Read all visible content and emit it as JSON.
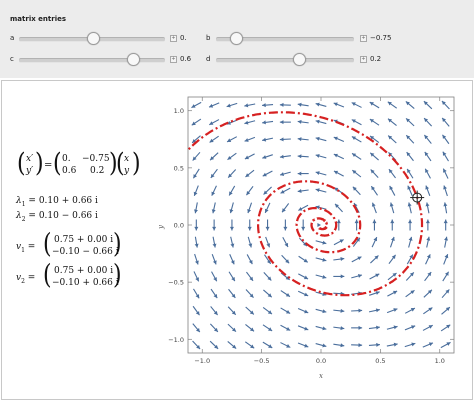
{
  "controls": {
    "title": "matrix entries",
    "sliders": [
      {
        "label": "a",
        "value_text": "0.",
        "value": 0.0
      },
      {
        "label": "b",
        "value_text": "−0.75",
        "value": -0.75
      },
      {
        "label": "c",
        "value_text": "0.6",
        "value": 0.6
      },
      {
        "label": "d",
        "value_text": "0.2",
        "value": 0.2
      }
    ]
  },
  "equation": {
    "lhs_top": "x′",
    "lhs_bot": "y′",
    "m11": "0.",
    "m12": "−0.75",
    "m21": "0.6",
    "m22": "0.2",
    "rhs_top": "x",
    "rhs_bot": "y",
    "eq": "="
  },
  "eigenvalues": [
    {
      "name": "λ",
      "sub": "1",
      "value": "0.10 + 0.66 i"
    },
    {
      "name": "λ",
      "sub": "2",
      "value": "0.10 − 0.66 i"
    }
  ],
  "eigenvectors": [
    {
      "name": "v",
      "sub": "1",
      "top": "0.75 + 0.00 i",
      "bot": "−0.10 − 0.66 i"
    },
    {
      "name": "v",
      "sub": "2",
      "top": "0.75 + 0.00 i",
      "bot": "−0.10 + 0.66 i"
    }
  ],
  "plot": {
    "xlabel": "x",
    "ylabel": "y",
    "x_ticks": [
      "−1.0",
      "−0.5",
      "0.0",
      "0.5",
      "1.0"
    ],
    "y_ticks": [
      "1.0",
      "0.5",
      "0.0",
      "−0.5",
      "−1.0"
    ],
    "tick_values": [
      -1.0,
      -0.5,
      0.0,
      0.5,
      1.0
    ],
    "xlim": [
      -1.12,
      1.12
    ],
    "ylim": [
      -1.12,
      1.12
    ],
    "start_point": [
      0.81,
      0.24
    ],
    "matrix": [
      [
        0.0,
        -0.75
      ],
      [
        0.6,
        0.2
      ]
    ],
    "arrow_color": "#4a6e9c",
    "trajectory_color": "#d62121",
    "marker_icon": "crosshair-icon"
  }
}
